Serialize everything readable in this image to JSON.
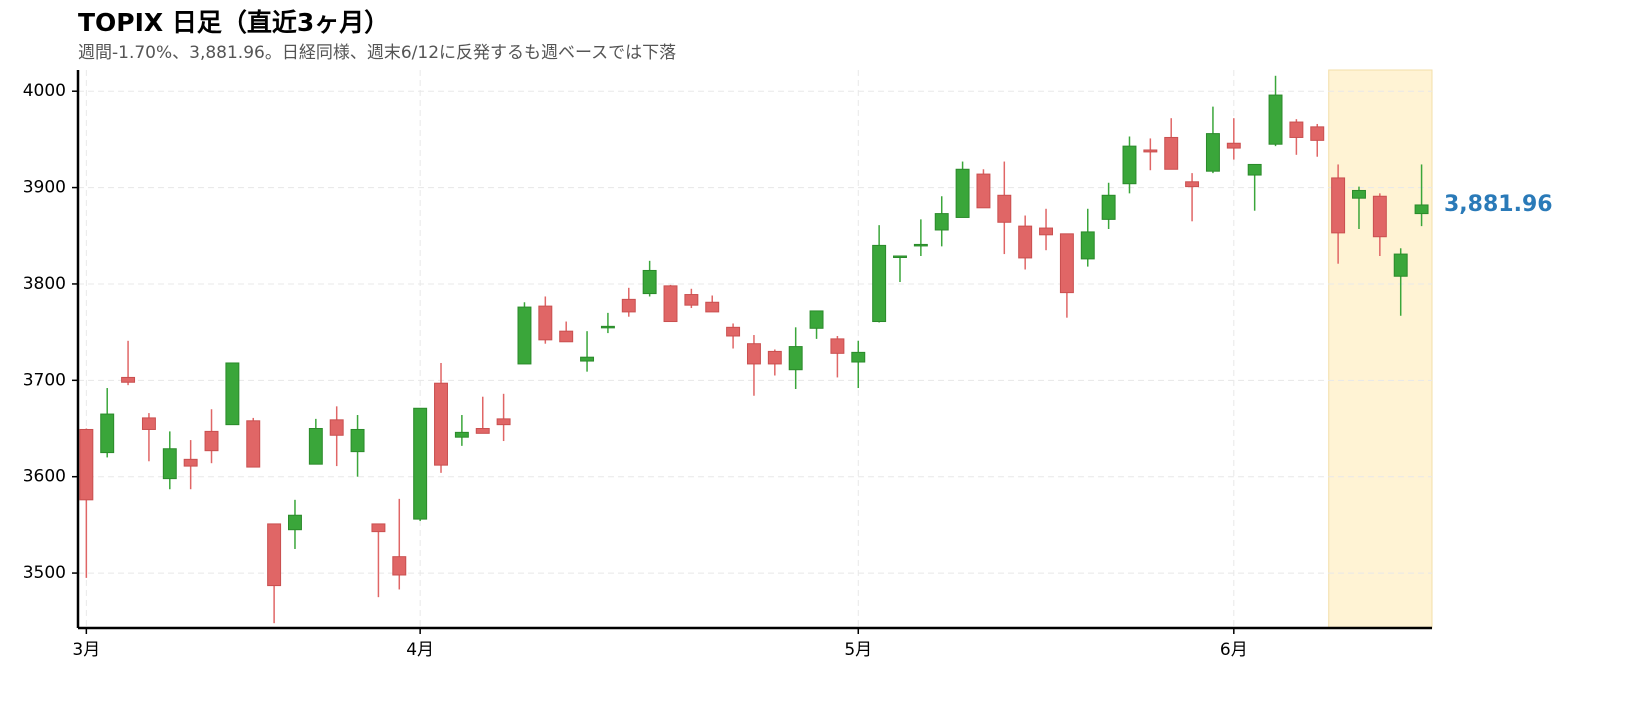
{
  "chart_data": {
    "type": "candlestick",
    "title": "TOPIX 日足（直近3ヶ月）",
    "subtitle": "週間-1.70%、3,881.96。日経同様、週末6/12に反発するも週ベースでは下落",
    "open": [
      3649,
      3625,
      3703,
      3661,
      3598,
      3618,
      3647,
      3654,
      3658,
      3551,
      3545,
      3613,
      3659,
      3626,
      3551,
      3517,
      3556,
      3697,
      3641,
      3650,
      3660,
      3717,
      3777,
      3751,
      3720,
      3755,
      3784,
      3790,
      3798,
      3789,
      3781,
      3755,
      3738,
      3730,
      3711,
      3754,
      3743,
      3719,
      3761,
      3828,
      3840,
      3856,
      3869,
      3914,
      3892,
      3860,
      3858,
      3852,
      3826,
      3867,
      3904,
      3939,
      3952,
      3906,
      3917,
      3946,
      3913,
      3945,
      3968,
      3963,
      3910,
      3889,
      3891,
      3808,
      3873
    ],
    "high": [
      3650,
      3692,
      3741,
      3666,
      3647,
      3638,
      3670,
      3718,
      3661,
      3551,
      3576,
      3660,
      3673,
      3664,
      3551,
      3577,
      3671,
      3718,
      3664,
      3683,
      3686,
      3781,
      3787,
      3761,
      3751,
      3770,
      3796,
      3824,
      3799,
      3795,
      3788,
      3759,
      3747,
      3732,
      3755,
      3772,
      3746,
      3741,
      3861,
      3829,
      3867,
      3891,
      3927,
      3919,
      3927,
      3871,
      3878,
      3852,
      3878,
      3905,
      3953,
      3951,
      3972,
      3915,
      3984,
      3972,
      3924,
      4016,
      3971,
      3966,
      3924,
      3901,
      3894,
      3837,
      3924
    ],
    "low": [
      3495,
      3620,
      3695,
      3616,
      3587,
      3587,
      3614,
      3654,
      3610,
      3448,
      3525,
      3613,
      3611,
      3600,
      3475,
      3483,
      3554,
      3604,
      3632,
      3645,
      3637,
      3717,
      3738,
      3740,
      3709,
      3749,
      3766,
      3787,
      3761,
      3775,
      3771,
      3733,
      3684,
      3705,
      3691,
      3743,
      3703,
      3692,
      3760,
      3802,
      3829,
      3839,
      3869,
      3879,
      3831,
      3815,
      3835,
      3765,
      3818,
      3857,
      3894,
      3918,
      3919,
      3865,
      3915,
      3929,
      3876,
      3943,
      3934,
      3932,
      3821,
      3857,
      3829,
      3767,
      3860
    ],
    "close": [
      3576,
      3665,
      3698,
      3649,
      3629,
      3611,
      3627,
      3718,
      3610,
      3487,
      3560,
      3650,
      3643,
      3649,
      3543,
      3498,
      3671,
      3612,
      3646,
      3645,
      3654,
      3776,
      3742,
      3740,
      3724,
      3756,
      3771,
      3814,
      3761,
      3778,
      3771,
      3746,
      3717,
      3717,
      3735,
      3772,
      3728,
      3729,
      3840,
      3829,
      3841,
      3873,
      3919,
      3879,
      3864,
      3827,
      3851,
      3791,
      3854,
      3892,
      3943,
      3937,
      3919,
      3901,
      3956,
      3941,
      3924,
      3996,
      3952,
      3949,
      3853,
      3897,
      3849,
      3831,
      3881.96
    ],
    "up_color": "#3aa63a",
    "down_color": "#e06666",
    "xlim": [
      -0.4,
      64.5
    ],
    "xticks": [
      {
        "value": 0,
        "label": "3月"
      },
      {
        "value": 16,
        "label": "4月"
      },
      {
        "value": 37,
        "label": "5月"
      },
      {
        "value": 55,
        "label": "6月"
      }
    ],
    "ylim": [
      3443,
      4022
    ],
    "yticks": [
      3500,
      3600,
      3700,
      3800,
      3900,
      4000
    ],
    "grid": true,
    "highlight": {
      "xlim": [
        59.55,
        64.5
      ],
      "color": "#fff3d4"
    },
    "annotation": {
      "text": "3,881.96",
      "color": "#2a7ab8"
    }
  }
}
